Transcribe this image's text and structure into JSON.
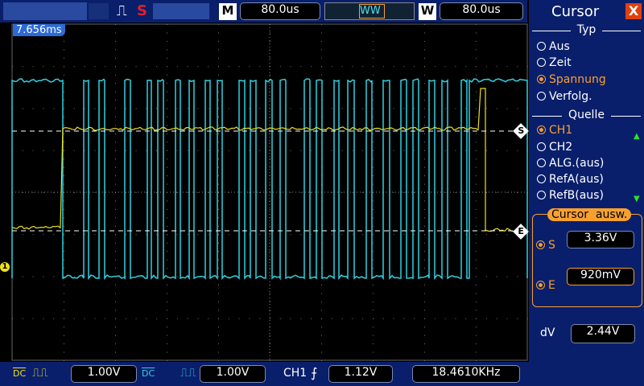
{
  "toolbar": {
    "run_mode": "S",
    "timebase_label": "M",
    "timebase": "80.0us",
    "window_label": "W",
    "window_time": "80.0us"
  },
  "screen": {
    "trigger_position": "7.656ms",
    "cursor_s": "S",
    "cursor_e": "E",
    "channel_marker": "1"
  },
  "cursor_panel": {
    "title": "Cursor",
    "close": "X",
    "type": {
      "label": "Typ",
      "options": [
        "Aus",
        "Zeit",
        "Spannung",
        "Verfolg."
      ]
    },
    "source": {
      "label": "Quelle",
      "options": [
        "CH1",
        "CH2",
        "ALG.(aus)",
        "RefA(aus)",
        "RefB(aus)"
      ]
    },
    "select": {
      "label": "Cursor  ausw.",
      "s_label": "S",
      "s_value": "3.36V",
      "e_label": "E",
      "e_value": "920mV"
    },
    "delta": {
      "label": "dV",
      "value": "2.44V"
    }
  },
  "status_bar": {
    "ch1_coupling": "DC",
    "ch1_scale": "1.00V",
    "ch2_coupling": "DC",
    "ch2_scale": "1.00V",
    "trigger_source": "CH1",
    "trigger_level": "1.12V",
    "frequency": "18.4610KHz"
  }
}
